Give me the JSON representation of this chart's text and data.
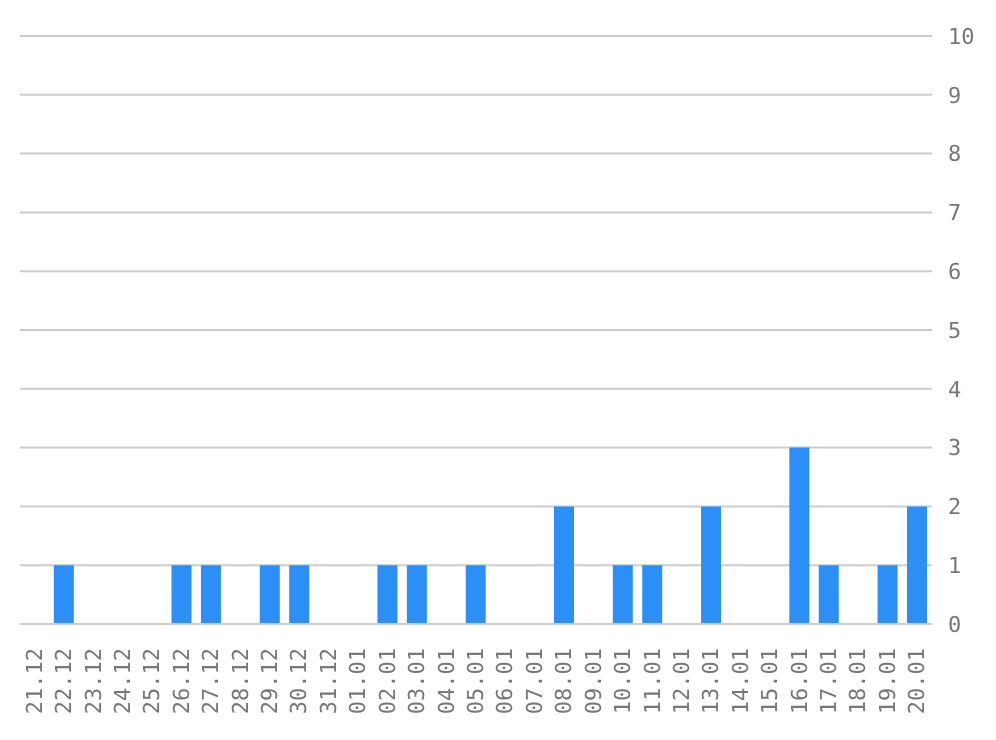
{
  "chart_data": {
    "type": "bar",
    "categories": [
      "21.12",
      "22.12",
      "23.12",
      "24.12",
      "25.12",
      "26.12",
      "27.12",
      "28.12",
      "29.12",
      "30.12",
      "31.12",
      "01.01",
      "02.01",
      "03.01",
      "04.01",
      "05.01",
      "06.01",
      "07.01",
      "08.01",
      "09.01",
      "10.01",
      "11.01",
      "12.01",
      "13.01",
      "14.01",
      "15.01",
      "16.01",
      "17.01",
      "18.01",
      "19.01",
      "20.01"
    ],
    "values": [
      0,
      1,
      0,
      0,
      0,
      1,
      1,
      0,
      1,
      1,
      0,
      0,
      1,
      1,
      0,
      1,
      0,
      0,
      2,
      0,
      1,
      1,
      0,
      2,
      0,
      0,
      3,
      1,
      0,
      1,
      2
    ],
    "color": "#2b8ff5",
    "ylim": [
      0,
      10
    ],
    "yticks": [
      0,
      1,
      2,
      3,
      4,
      5,
      6,
      7,
      8,
      9,
      10
    ],
    "grid": "y",
    "legend": false
  }
}
